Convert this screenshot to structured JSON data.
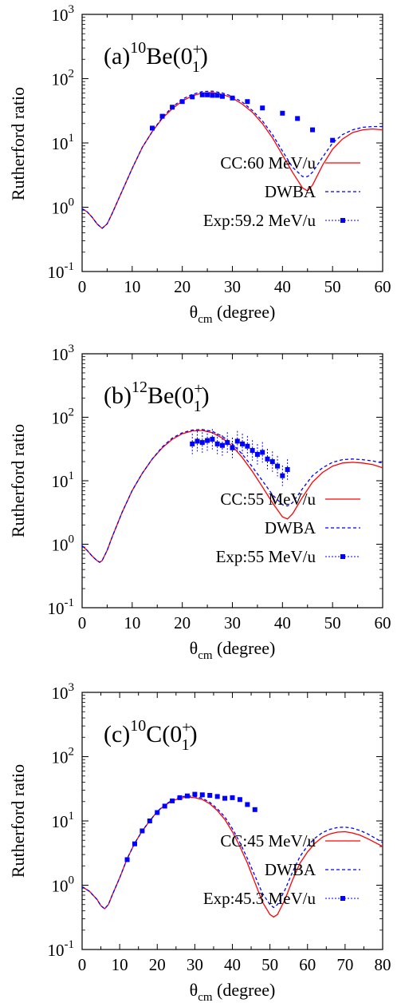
{
  "chart_data": [
    {
      "type": "line",
      "title": {
        "prefix": "(a)",
        "mass": "10",
        "element": "Be(0",
        "sup": "+",
        "sub": "1",
        "suffix": ")"
      },
      "xlabel": {
        "theta": "θ",
        "sub": "cm",
        "rest": " (degree)"
      },
      "ylabel": "Rutherford ratio",
      "xlim": [
        0,
        60
      ],
      "ylim": [
        0.1,
        1000
      ],
      "yscale": "log",
      "xticks": [
        0,
        10,
        20,
        30,
        40,
        50,
        60
      ],
      "yticks": [
        {
          "base": "10",
          "exp": "-1",
          "value": 0.1
        },
        {
          "base": "10",
          "exp": "0",
          "value": 1
        },
        {
          "base": "10",
          "exp": "1",
          "value": 10
        },
        {
          "base": "10",
          "exp": "2",
          "value": 100
        },
        {
          "base": "10",
          "exp": "3",
          "value": 1000
        }
      ],
      "legend_position": "bottom-right",
      "series": [
        {
          "name": "CC:60 MeV/u",
          "style": "solid",
          "color": "#ff0000",
          "x": [
            0,
            1,
            2,
            3,
            4,
            5,
            6,
            8,
            10,
            12,
            14,
            16,
            18,
            20,
            22,
            24,
            26,
            28,
            30,
            32,
            34,
            36,
            38,
            40,
            42,
            44,
            45,
            46,
            48,
            50,
            52,
            54,
            56,
            58,
            60
          ],
          "y": [
            0.95,
            0.85,
            0.7,
            0.55,
            0.47,
            0.55,
            0.8,
            1.8,
            4.0,
            8.5,
            15,
            24,
            34,
            45,
            54,
            60,
            61,
            57,
            50,
            40,
            30,
            20,
            12,
            6.5,
            3.5,
            2.0,
            1.8,
            2.2,
            4.5,
            8.0,
            11.5,
            14.5,
            16,
            16.5,
            16
          ]
        },
        {
          "name": "DWBA",
          "style": "dashed",
          "color": "#0000ff",
          "x": [
            0,
            1,
            2,
            3,
            4,
            5,
            6,
            8,
            10,
            12,
            14,
            16,
            18,
            20,
            22,
            24,
            26,
            28,
            30,
            32,
            34,
            36,
            38,
            40,
            42,
            44,
            45,
            46,
            48,
            50,
            52,
            54,
            56,
            58,
            60
          ],
          "y": [
            0.95,
            0.85,
            0.7,
            0.55,
            0.47,
            0.55,
            0.8,
            1.8,
            4.0,
            8.5,
            15,
            25,
            36,
            48,
            57,
            63,
            64,
            60,
            53,
            43,
            32,
            22,
            13.5,
            7.5,
            4.2,
            3.0,
            3.0,
            3.5,
            6.0,
            10,
            13.5,
            16,
            17.5,
            18,
            18
          ]
        },
        {
          "name": "Exp:59.2 MeV/u",
          "style": "markers",
          "color": "#0000ff",
          "x": [
            14,
            16,
            18,
            20,
            22,
            24,
            25,
            26,
            27,
            28,
            30,
            33,
            36,
            40,
            43,
            46,
            50
          ],
          "y": [
            17,
            26,
            36,
            44,
            52,
            56,
            56,
            55,
            55,
            53,
            50,
            44,
            35,
            29,
            24,
            16,
            11
          ]
        }
      ]
    },
    {
      "type": "line",
      "title": {
        "prefix": "(b)",
        "mass": "12",
        "element": "Be(0",
        "sup": "+",
        "sub": "1",
        "suffix": ")"
      },
      "xlabel": {
        "theta": "θ",
        "sub": "cm",
        "rest": " (degree)"
      },
      "ylabel": "Rutherford ratio",
      "xlim": [
        0,
        60
      ],
      "ylim": [
        0.1,
        1000
      ],
      "yscale": "log",
      "xticks": [
        0,
        10,
        20,
        30,
        40,
        50,
        60
      ],
      "yticks": [
        {
          "base": "10",
          "exp": "-1",
          "value": 0.1
        },
        {
          "base": "10",
          "exp": "0",
          "value": 1
        },
        {
          "base": "10",
          "exp": "1",
          "value": 10
        },
        {
          "base": "10",
          "exp": "2",
          "value": 100
        },
        {
          "base": "10",
          "exp": "3",
          "value": 1000
        }
      ],
      "legend_position": "bottom-right",
      "series": [
        {
          "name": "CC:55 MeV/u",
          "style": "solid",
          "color": "#ff0000",
          "x": [
            0,
            1,
            2,
            3,
            3.5,
            4,
            5,
            6,
            8,
            10,
            12,
            14,
            16,
            18,
            20,
            22,
            24,
            26,
            28,
            30,
            32,
            34,
            36,
            38,
            40,
            41,
            42,
            44,
            46,
            48,
            50,
            52,
            54,
            56,
            58,
            60
          ],
          "y": [
            0.95,
            0.8,
            0.65,
            0.55,
            0.52,
            0.55,
            0.8,
            1.3,
            3.2,
            7.0,
            13,
            22,
            33,
            45,
            55,
            61,
            62,
            57,
            47,
            35,
            23,
            14,
            8.0,
            4.5,
            2.7,
            2.5,
            3.0,
            5.5,
            9.5,
            13.5,
            17,
            19,
            19.5,
            19,
            18,
            16
          ]
        },
        {
          "name": "DWBA",
          "style": "dashed",
          "color": "#0000ff",
          "x": [
            0,
            1,
            2,
            3,
            3.5,
            4,
            5,
            6,
            8,
            10,
            12,
            14,
            16,
            18,
            20,
            22,
            24,
            26,
            28,
            30,
            32,
            34,
            36,
            38,
            40,
            41,
            42,
            44,
            46,
            48,
            50,
            52,
            54,
            56,
            58,
            60
          ],
          "y": [
            0.95,
            0.8,
            0.65,
            0.55,
            0.52,
            0.55,
            0.8,
            1.3,
            3.2,
            7.0,
            13,
            22,
            34,
            47,
            57,
            63,
            64,
            60,
            50,
            38,
            26,
            16.5,
            10,
            6.0,
            4.2,
            4.0,
            4.5,
            7.5,
            12,
            16,
            19.5,
            21.5,
            22,
            21.5,
            20.5,
            19
          ]
        },
        {
          "name": "Exp:55 MeV/u",
          "style": "markers",
          "color": "#0000ff",
          "x": [
            22,
            23,
            24,
            25,
            26,
            27,
            28,
            29,
            30,
            31,
            32,
            33,
            34,
            35,
            36,
            37,
            38,
            39,
            40,
            41
          ],
          "y": [
            38,
            42,
            40,
            43,
            45,
            38,
            36,
            40,
            33,
            42,
            38,
            35,
            30,
            26,
            28,
            22,
            20,
            17,
            12,
            15
          ]
        }
      ]
    },
    {
      "type": "line",
      "title": {
        "prefix": "(c)",
        "mass": "10",
        "element": "C(0",
        "sup": "+",
        "sub": "1",
        "suffix": ")"
      },
      "xlabel": {
        "theta": "θ",
        "sub": "cm",
        "rest": " (degree)"
      },
      "ylabel": "Rutherford ratio",
      "xlim": [
        0,
        80
      ],
      "ylim": [
        0.1,
        1000
      ],
      "yscale": "log",
      "xticks": [
        0,
        10,
        20,
        30,
        40,
        50,
        60,
        70,
        80
      ],
      "yticks": [
        {
          "base": "10",
          "exp": "-1",
          "value": 0.1
        },
        {
          "base": "10",
          "exp": "0",
          "value": 1
        },
        {
          "base": "10",
          "exp": "1",
          "value": 10
        },
        {
          "base": "10",
          "exp": "2",
          "value": 100
        },
        {
          "base": "10",
          "exp": "3",
          "value": 1000
        }
      ],
      "legend_position": "bottom-right",
      "series": [
        {
          "name": "CC:45 MeV/u",
          "style": "solid",
          "color": "#ff0000",
          "x": [
            0,
            2,
            4,
            5,
            6,
            7,
            8,
            10,
            12,
            14,
            16,
            18,
            20,
            22,
            24,
            26,
            28,
            30,
            32,
            34,
            36,
            38,
            40,
            42,
            44,
            46,
            48,
            50,
            51,
            52,
            54,
            56,
            58,
            60,
            62,
            64,
            66,
            68,
            70,
            72,
            74,
            76,
            78,
            80
          ],
          "y": [
            0.95,
            0.8,
            0.6,
            0.48,
            0.43,
            0.5,
            0.7,
            1.3,
            2.6,
            4.5,
            7.0,
            10,
            14,
            17.5,
            20.5,
            22.5,
            23.5,
            23,
            21.5,
            18.5,
            14.5,
            10.5,
            6.8,
            4.0,
            2.2,
            1.1,
            0.55,
            0.35,
            0.32,
            0.35,
            0.6,
            1.2,
            2.2,
            3.3,
            4.5,
            5.6,
            6.3,
            6.7,
            6.8,
            6.5,
            6.0,
            5.3,
            4.6,
            4.0
          ]
        },
        {
          "name": "DWBA",
          "style": "dashed",
          "color": "#0000ff",
          "x": [
            0,
            2,
            4,
            5,
            6,
            7,
            8,
            10,
            12,
            14,
            16,
            18,
            20,
            22,
            24,
            26,
            28,
            30,
            32,
            34,
            36,
            38,
            40,
            42,
            44,
            46,
            48,
            50,
            51,
            52,
            54,
            56,
            58,
            60,
            62,
            64,
            66,
            68,
            70,
            72,
            74,
            76,
            78,
            80
          ],
          "y": [
            0.95,
            0.8,
            0.6,
            0.48,
            0.43,
            0.5,
            0.7,
            1.3,
            2.6,
            4.5,
            7.0,
            10,
            14,
            18,
            21,
            23.5,
            24.5,
            24,
            22.5,
            19.5,
            15.5,
            11.5,
            7.6,
            4.6,
            2.6,
            1.4,
            0.75,
            0.5,
            0.45,
            0.5,
            0.85,
            1.6,
            2.8,
            4.1,
            5.4,
            6.6,
            7.4,
            7.9,
            8.0,
            7.7,
            7.1,
            6.3,
            5.4,
            4.6
          ]
        },
        {
          "name": "Exp:45.3 MeV/u",
          "style": "markers",
          "color": "#0000ff",
          "x": [
            12,
            14,
            16,
            18,
            20,
            22,
            24,
            26,
            28,
            30,
            32,
            34,
            36,
            38,
            40,
            42,
            44,
            46
          ],
          "y": [
            2.5,
            4.4,
            7.0,
            10,
            13.5,
            17,
            20.5,
            23,
            24.5,
            26,
            25.5,
            25,
            24,
            22.5,
            23,
            21.5,
            18,
            15
          ]
        }
      ]
    }
  ]
}
